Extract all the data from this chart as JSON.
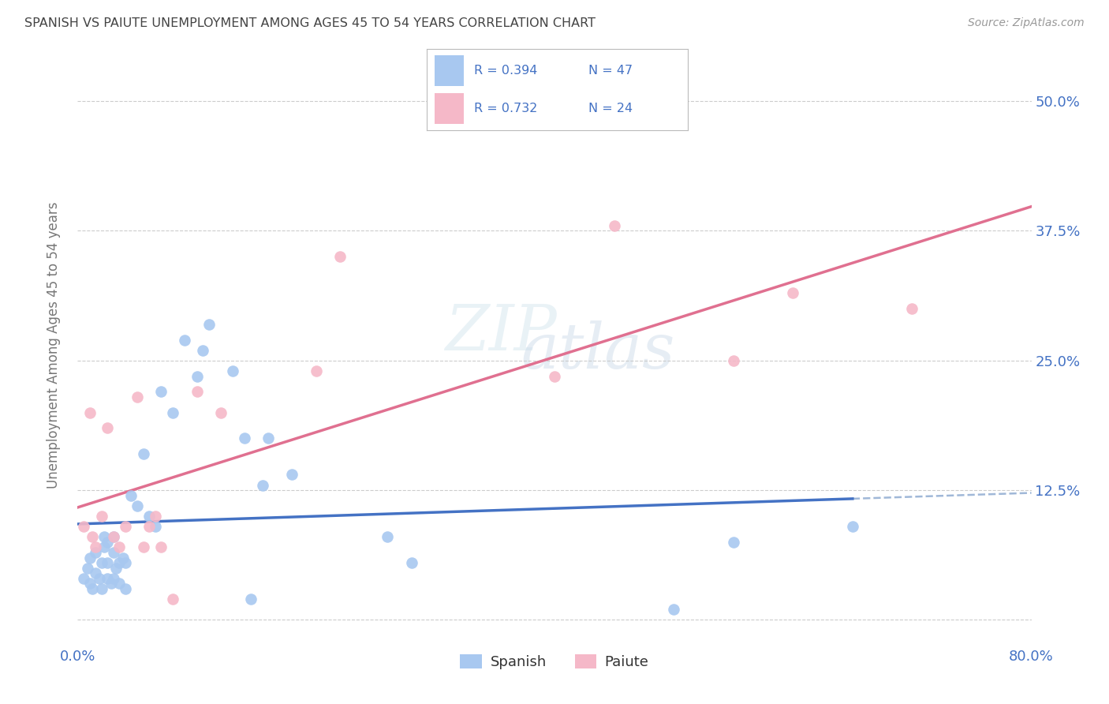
{
  "title": "SPANISH VS PAIUTE UNEMPLOYMENT AMONG AGES 45 TO 54 YEARS CORRELATION CHART",
  "source": "Source: ZipAtlas.com",
  "ylabel": "Unemployment Among Ages 45 to 54 years",
  "xlim": [
    0.0,
    0.8
  ],
  "ylim": [
    -0.02,
    0.55
  ],
  "spanish_R": 0.394,
  "spanish_N": 47,
  "paiute_R": 0.732,
  "paiute_N": 24,
  "spanish_color": "#a8c8f0",
  "paiute_color": "#f5b8c8",
  "line_blue": "#4472c4",
  "line_pink": "#e07090",
  "line_dash": "#a0b8d8",
  "spanish_x": [
    0.005,
    0.008,
    0.01,
    0.01,
    0.012,
    0.015,
    0.015,
    0.018,
    0.02,
    0.02,
    0.022,
    0.022,
    0.025,
    0.025,
    0.025,
    0.028,
    0.03,
    0.03,
    0.03,
    0.032,
    0.035,
    0.035,
    0.038,
    0.04,
    0.04,
    0.045,
    0.05,
    0.055,
    0.06,
    0.065,
    0.07,
    0.08,
    0.09,
    0.1,
    0.105,
    0.11,
    0.13,
    0.14,
    0.145,
    0.155,
    0.16,
    0.18,
    0.26,
    0.28,
    0.5,
    0.55,
    0.65
  ],
  "spanish_y": [
    0.04,
    0.05,
    0.035,
    0.06,
    0.03,
    0.045,
    0.065,
    0.04,
    0.03,
    0.055,
    0.07,
    0.08,
    0.04,
    0.055,
    0.075,
    0.035,
    0.04,
    0.065,
    0.08,
    0.05,
    0.035,
    0.055,
    0.06,
    0.03,
    0.055,
    0.12,
    0.11,
    0.16,
    0.1,
    0.09,
    0.22,
    0.2,
    0.27,
    0.235,
    0.26,
    0.285,
    0.24,
    0.175,
    0.02,
    0.13,
    0.175,
    0.14,
    0.08,
    0.055,
    0.01,
    0.075,
    0.09
  ],
  "paiute_x": [
    0.005,
    0.01,
    0.012,
    0.015,
    0.02,
    0.025,
    0.03,
    0.035,
    0.04,
    0.05,
    0.055,
    0.06,
    0.065,
    0.07,
    0.08,
    0.1,
    0.12,
    0.2,
    0.22,
    0.4,
    0.45,
    0.55,
    0.6,
    0.7
  ],
  "paiute_y": [
    0.09,
    0.2,
    0.08,
    0.07,
    0.1,
    0.185,
    0.08,
    0.07,
    0.09,
    0.215,
    0.07,
    0.09,
    0.1,
    0.07,
    0.02,
    0.22,
    0.2,
    0.24,
    0.35,
    0.235,
    0.38,
    0.25,
    0.315,
    0.3
  ],
  "watermark_top": "ZIP",
  "watermark_bot": "atlas",
  "background_color": "#ffffff",
  "grid_color": "#cccccc",
  "title_color": "#444444",
  "tick_color": "#4472c4"
}
